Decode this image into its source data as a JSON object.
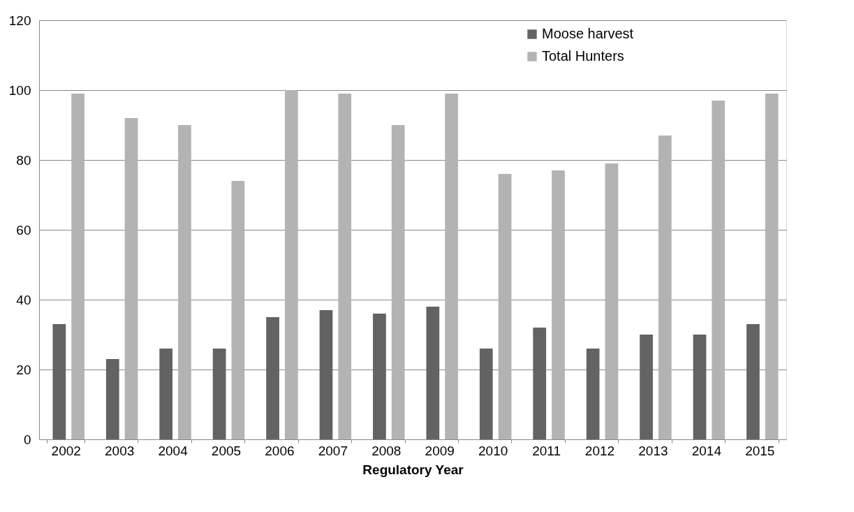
{
  "chart_data": {
    "type": "bar",
    "xlabel": "Regulatory Year",
    "categories": [
      "2002",
      "2003",
      "2004",
      "2005",
      "2006",
      "2007",
      "2008",
      "2009",
      "2010",
      "2011",
      "2012",
      "2013",
      "2014",
      "2015"
    ],
    "series": [
      {
        "name": "Moose harvest",
        "color": "#636363",
        "values": [
          33,
          23,
          26,
          26,
          35,
          37,
          36,
          38,
          26,
          32,
          26,
          30,
          30,
          33
        ]
      },
      {
        "name": "Total Hunters",
        "color": "#b3b3b3",
        "values": [
          99,
          92,
          90,
          74,
          100,
          99,
          90,
          99,
          76,
          77,
          79,
          87,
          97,
          99
        ]
      }
    ],
    "ylim": [
      0,
      120
    ],
    "yticks": [
      0,
      20,
      40,
      60,
      80,
      100,
      120
    ],
    "grid": "y",
    "legend": "top right"
  }
}
